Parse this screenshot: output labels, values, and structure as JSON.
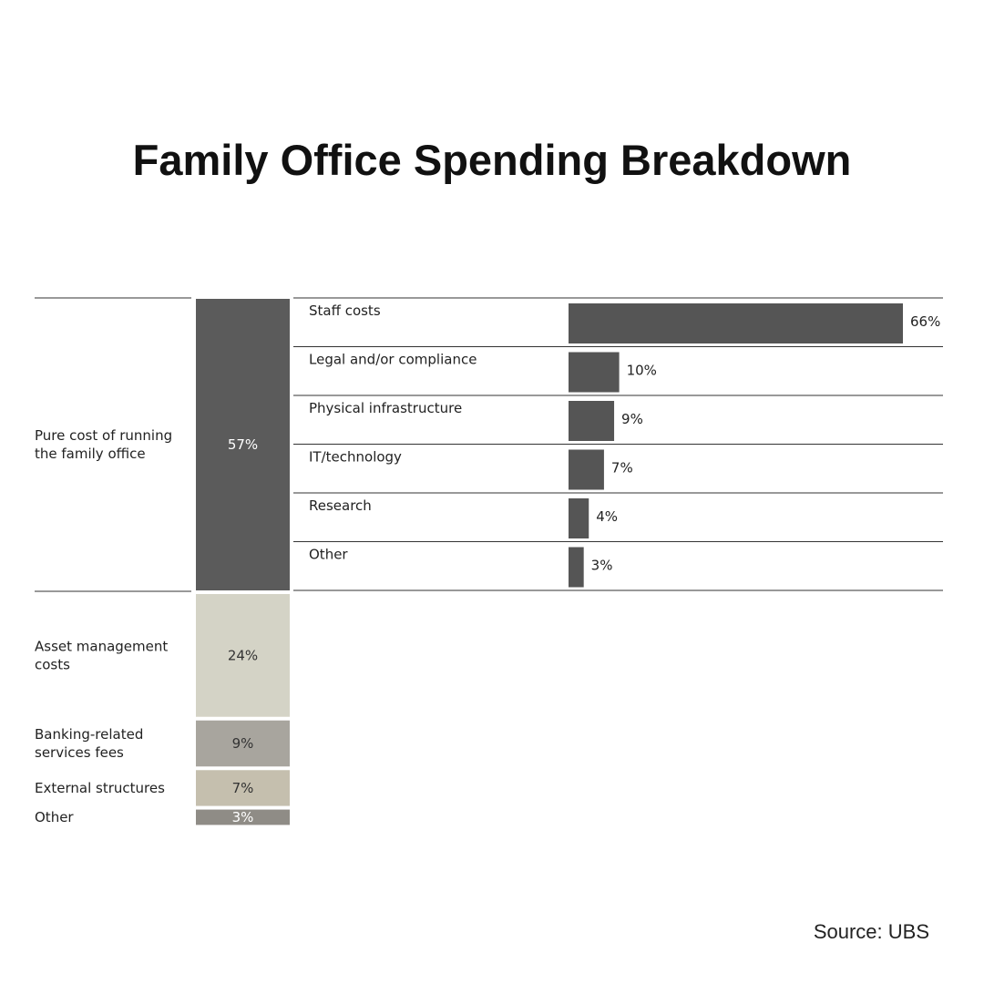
{
  "title": "Family Office Spending Breakdown",
  "source": "Source: UBS",
  "colors": {
    "dark": "#5b5b5b",
    "detail_bar": "#555555",
    "light": "#d4d3c6",
    "mid": "#a8a59e",
    "tan": "#c5bfae",
    "gray": "#8f8c86",
    "rule": "#333333"
  },
  "chart_data": [
    {
      "type": "bar",
      "orientation": "stacked-vertical",
      "categories": [
        [
          "Pure cost of running",
          "the family office"
        ],
        [
          "Asset management",
          "costs"
        ],
        [
          "Banking-related",
          "services fees"
        ],
        [
          "External structures"
        ],
        [
          "Other"
        ]
      ],
      "values": [
        57,
        24,
        9,
        7,
        3
      ],
      "value_labels": [
        "57%",
        "24%",
        "9%",
        "7%",
        "3%"
      ],
      "segment_colors": [
        "dark",
        "light",
        "mid",
        "tan",
        "gray"
      ],
      "label_colors": [
        "#ffffff",
        "#333333",
        "#333333",
        "#333333",
        "#ffffff"
      ],
      "unit": "%"
    },
    {
      "type": "bar",
      "orientation": "horizontal",
      "breakdown_of": "Pure cost of running the family office",
      "categories": [
        "Staff costs",
        "Legal and/or compliance",
        "Physical infrastructure",
        "IT/technology",
        "Research",
        "Other"
      ],
      "values": [
        66,
        10,
        9,
        7,
        4,
        3
      ],
      "value_labels": [
        "66%",
        "10%",
        "9%",
        "7%",
        "4%",
        "3%"
      ],
      "unit": "%",
      "xlim": [
        0,
        66
      ]
    }
  ]
}
